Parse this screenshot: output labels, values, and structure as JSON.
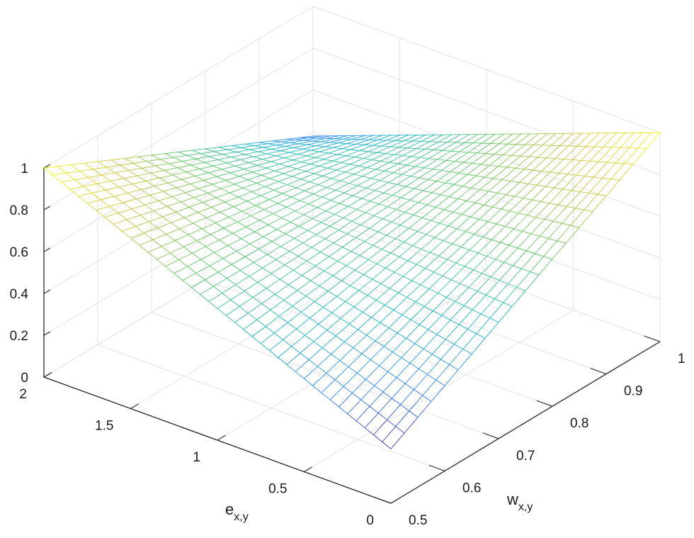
{
  "chart_data": {
    "type": "surface-mesh",
    "xlabel": "w",
    "xlabel_sub": "x,y",
    "ylabel": "e",
    "ylabel_sub": "x,y",
    "zlabel": "",
    "xlim": [
      0.5,
      1
    ],
    "ylim": [
      0,
      2
    ],
    "zlim": [
      0,
      1
    ],
    "xticks": [
      "0.5",
      "0.6",
      "0.7",
      "0.8",
      "0.9",
      "1"
    ],
    "yticks": [
      "0",
      "0.5",
      "1",
      "1.5",
      "2"
    ],
    "zticks": [
      "0",
      "0.2",
      "0.4",
      "0.6",
      "0.8",
      "1"
    ],
    "grid": true,
    "colormap": [
      "#3e26a8",
      "#2e87f7",
      "#1ab8c7",
      "#5dc962",
      "#d9c13a",
      "#f9fb0e"
    ],
    "corners": [
      {
        "w": 0.5,
        "e": 0,
        "z": 0.26
      },
      {
        "w": 1,
        "e": 0,
        "z": 1.0
      },
      {
        "w": 0.5,
        "e": 2,
        "z": 1.0
      },
      {
        "w": 1,
        "e": 2,
        "z": 0.38
      }
    ],
    "mesh_lines_w": 21,
    "mesh_lines_e": 41
  }
}
